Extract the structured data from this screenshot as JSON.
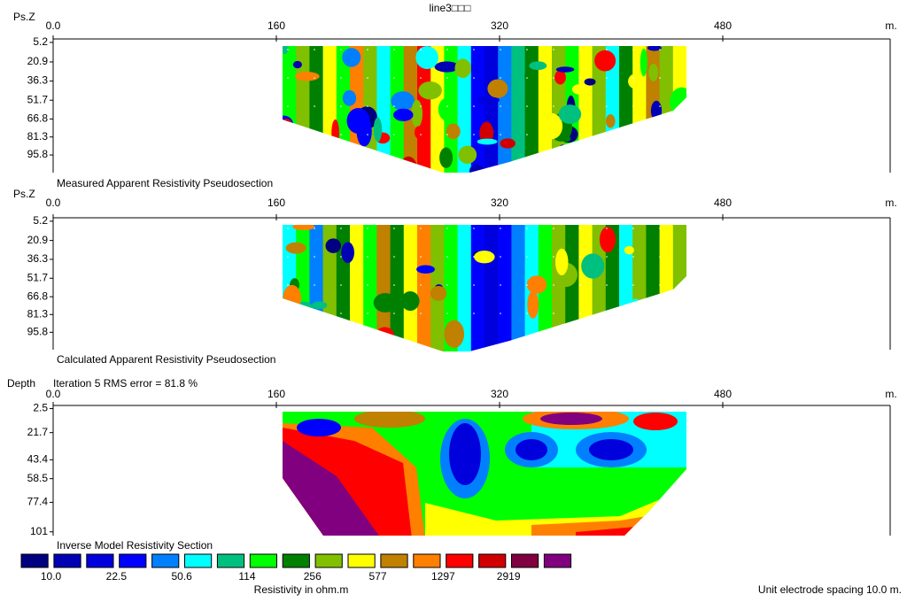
{
  "title": "line3□□□",
  "panels": [
    {
      "y_label": "Ps.Z",
      "x_unit": "m.",
      "caption": "Measured Apparent Resistivity Pseudosection",
      "xlim": [
        0,
        600
      ],
      "xticks": [
        {
          "value": 0,
          "label": "0.0"
        },
        160,
        320,
        480
      ],
      "ylim": [
        2.4,
        110
      ],
      "yticks": [
        5.2,
        20.9,
        36.3,
        51.7,
        66.8,
        81.3,
        95.8
      ]
    },
    {
      "y_label": "Ps.Z",
      "x_unit": "m.",
      "caption": "Calculated Apparent Resistivity Pseudosection",
      "xlim": [
        0,
        600
      ],
      "xticks": [
        {
          "value": 0,
          "label": "0.0"
        },
        160,
        320,
        480
      ],
      "ylim": [
        2.4,
        110
      ],
      "yticks": [
        5.2,
        20.9,
        36.3,
        51.7,
        66.8,
        81.3,
        95.8
      ]
    },
    {
      "y_label": "Depth",
      "note": "Iteration 5 RMS error = 81.8 %",
      "x_unit": "m.",
      "caption": "Inverse Model Resistivity Section",
      "xlim": [
        0,
        600
      ],
      "xticks": [
        {
          "value": 0,
          "label": "0.0"
        },
        160,
        320,
        480
      ],
      "ylim": [
        0,
        104
      ],
      "yticks": [
        2.5,
        21.7,
        43.4,
        58.5,
        77.4,
        101
      ]
    }
  ],
  "legend": {
    "colors": [
      "#000080",
      "#0000b4",
      "#0000dc",
      "#0000ff",
      "#0080ff",
      "#00ffff",
      "#00c080",
      "#00ff00",
      "#008000",
      "#80c000",
      "#ffff00",
      "#c08000",
      "#ff8000",
      "#ff0000",
      "#d00000",
      "#800040",
      "#800080"
    ],
    "labels": [
      "10.0",
      "22.5",
      "50.6",
      "114",
      "256",
      "577",
      "1297",
      "2919"
    ],
    "title": "Resistivity in ohm.m"
  },
  "footer": "Unit electrode spacing 10.0 m."
}
